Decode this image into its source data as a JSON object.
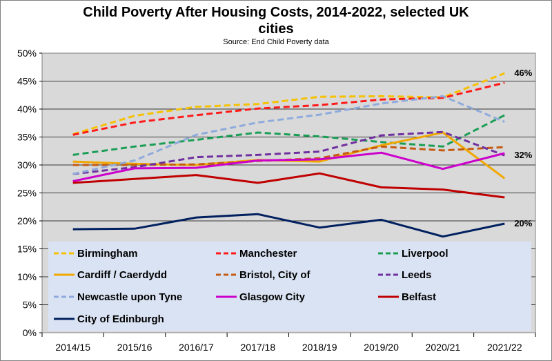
{
  "chart_data": {
    "type": "line",
    "title_line1": "Child Poverty After Housing Costs, 2014-2022, selected UK",
    "title_line2": "cities",
    "subtitle": "Source: End Child Poverty data",
    "categories": [
      "2014/15",
      "2015/16",
      "2016/17",
      "2017/18",
      "2018/19",
      "2019/20",
      "2020/21",
      "2021/22"
    ],
    "y_ticks": [
      "0%",
      "5%",
      "10%",
      "15%",
      "20%",
      "25%",
      "30%",
      "35%",
      "40%",
      "45%",
      "50%"
    ],
    "ylim": [
      0,
      50
    ],
    "series": [
      {
        "name": "Birmingham",
        "color": "#f5c100",
        "dash": true,
        "values": [
          35.5,
          38.8,
          40.4,
          40.9,
          42.2,
          42.3,
          42.1,
          46.4
        ]
      },
      {
        "name": "Manchester",
        "color": "#ff1a1a",
        "dash": true,
        "values": [
          35.4,
          37.6,
          38.9,
          40.1,
          40.7,
          41.7,
          42.0,
          44.7
        ]
      },
      {
        "name": "Liverpool",
        "color": "#1a9e55",
        "dash": true,
        "values": [
          31.8,
          33.3,
          34.5,
          35.8,
          35.1,
          34.1,
          33.3,
          38.9
        ]
      },
      {
        "name": "Cardiff / Caerdydd",
        "color": "#f0a800",
        "dash": false,
        "values": [
          30.6,
          30.2,
          30.0,
          30.9,
          30.6,
          33.5,
          35.8,
          27.6
        ]
      },
      {
        "name": "Bristol, City of",
        "color": "#c55a11",
        "dash": true,
        "values": [
          30.0,
          30.0,
          30.1,
          30.7,
          31.2,
          33.3,
          32.6,
          33.2
        ]
      },
      {
        "name": "Leeds",
        "color": "#7030a0",
        "dash": true,
        "values": [
          28.4,
          29.6,
          31.4,
          31.8,
          32.4,
          35.3,
          35.9,
          31.7
        ]
      },
      {
        "name": "Newcastle upon Tyne",
        "color": "#8faadc",
        "dash": true,
        "values": [
          28.4,
          30.8,
          35.4,
          37.6,
          39.0,
          41.0,
          42.3,
          37.7
        ]
      },
      {
        "name": "Glasgow City",
        "color": "#cc00cc",
        "dash": false,
        "values": [
          27.1,
          29.4,
          29.5,
          30.8,
          31.0,
          32.2,
          29.3,
          32.1
        ]
      },
      {
        "name": "Belfast",
        "color": "#c00000",
        "dash": false,
        "values": [
          26.8,
          27.5,
          28.2,
          26.8,
          28.5,
          26.0,
          25.6,
          24.2
        ]
      },
      {
        "name": "City of Edinburgh",
        "color": "#002060",
        "dash": false,
        "values": [
          18.5,
          18.6,
          20.6,
          21.2,
          18.8,
          20.2,
          17.2,
          19.5
        ]
      }
    ],
    "end_labels": [
      {
        "series": "Birmingham",
        "text": "46%"
      },
      {
        "series": "Leeds",
        "text": "32%"
      },
      {
        "series": "City of Edinburgh",
        "text": "20%"
      }
    ],
    "legend_placement": "bottom-inside",
    "grid": "horizontal"
  }
}
